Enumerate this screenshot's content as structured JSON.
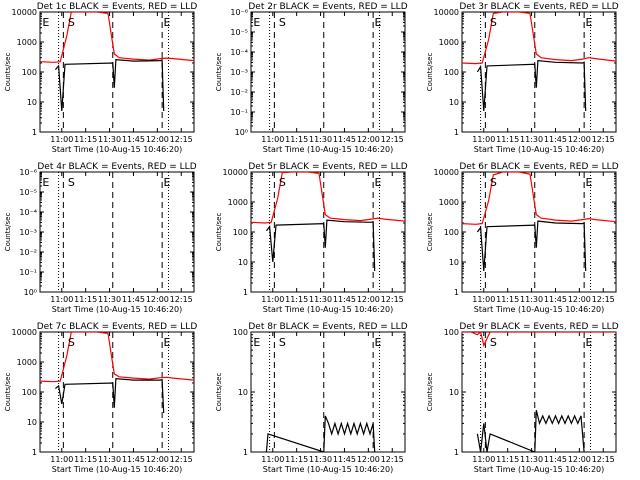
{
  "window": {
    "background": "#ffffff",
    "axis_color": "#000000"
  },
  "colors": {
    "events": "#000000",
    "lld": "#ff0000"
  },
  "start_time_label": "Start Time (10-Aug-15 10:46:20)",
  "ylabel": "Counts/sec",
  "time_ticks": [
    "11:00",
    "11:15",
    "11:30",
    "11:45",
    "12:00",
    "12:15"
  ],
  "markers": {
    "dotted": [
      "10:58",
      "12:07"
    ],
    "dashed": [
      "11:01",
      "11:32",
      "12:03"
    ]
  },
  "chart_data": [
    {
      "type": "line",
      "title": "Det 1c BLACK = Events, RED = LLD",
      "x_range": [
        "10:46:20",
        "12:23"
      ],
      "y_scale": "log",
      "ylim": [
        1,
        10000
      ],
      "yticks": [
        "1",
        "10",
        "100",
        "1000",
        "10000"
      ],
      "annotations": [
        {
          "text": "E",
          "time": "10:50"
        },
        {
          "text": "S",
          "time": "11:06"
        },
        {
          "text": "E",
          "time": "12:06"
        }
      ],
      "series": [
        {
          "name": "LLD",
          "color": "red",
          "x": [
            "10:46:20",
            "10:55",
            "10:59",
            "11:03",
            "11:06",
            "11:12",
            "11:22",
            "11:29",
            "11:33",
            "11:36",
            "11:45",
            "11:55",
            "12:02",
            "12:06",
            "12:10",
            "12:23"
          ],
          "y": [
            220,
            210,
            220,
            1500,
            10000,
            14000,
            14000,
            9000,
            400,
            300,
            270,
            250,
            280,
            290,
            280,
            240
          ]
        },
        {
          "name": "Events",
          "color": "black",
          "x": [
            "10:56",
            "10:58",
            "11:00",
            "11:02",
            "11:32",
            "11:33",
            "11:34",
            "11:45",
            "12:02",
            "12:03",
            "12:04"
          ],
          "y": [
            120,
            160,
            5,
            180,
            200,
            30,
            260,
            230,
            240,
            250,
            5
          ]
        }
      ]
    },
    {
      "type": "line",
      "title": "Det 2r BLACK = Events, RED = LLD",
      "x_range": [
        "10:46:20",
        "12:23"
      ],
      "y_scale": "log",
      "ylim": [
        1,
        1e-06
      ],
      "yticks": [
        "10⁰",
        "10⁻¹",
        "10⁻²",
        "10⁻³",
        "10⁻⁴",
        "10⁻⁵",
        "10⁻⁶"
      ],
      "annotations": [
        {
          "text": "E",
          "time": "10:50"
        },
        {
          "text": "S",
          "time": "11:06"
        },
        {
          "text": "E",
          "time": "12:06"
        }
      ],
      "series": []
    },
    {
      "type": "line",
      "title": "Det 3r BLACK = Events, RED = LLD",
      "x_range": [
        "10:46:20",
        "12:23"
      ],
      "y_scale": "log",
      "ylim": [
        1,
        10000
      ],
      "yticks": [
        "1",
        "10",
        "100",
        "1000",
        "10000"
      ],
      "annotations": [
        {
          "text": "S",
          "time": "11:06"
        },
        {
          "text": "E",
          "time": "12:06"
        }
      ],
      "series": [
        {
          "name": "LLD",
          "color": "red",
          "x": [
            "10:46:20",
            "10:55",
            "10:59",
            "11:03",
            "11:06",
            "11:12",
            "11:22",
            "11:29",
            "11:33",
            "11:36",
            "11:45",
            "11:55",
            "12:02",
            "12:06",
            "12:10",
            "12:23"
          ],
          "y": [
            200,
            190,
            200,
            1200,
            9000,
            14000,
            14000,
            9000,
            400,
            300,
            260,
            240,
            270,
            300,
            280,
            230
          ]
        },
        {
          "name": "Events",
          "color": "black",
          "x": [
            "10:56",
            "10:58",
            "11:00",
            "11:02",
            "11:32",
            "11:33",
            "11:34",
            "11:45",
            "12:02",
            "12:03",
            "12:04"
          ],
          "y": [
            100,
            150,
            5,
            160,
            180,
            30,
            240,
            210,
            200,
            210,
            5
          ]
        }
      ]
    },
    {
      "type": "line",
      "title": "Det 4r BLACK = Events, RED = LLD",
      "x_range": [
        "10:46:20",
        "12:23"
      ],
      "y_scale": "log",
      "ylim": [
        1,
        1e-06
      ],
      "yticks": [
        "10⁰",
        "10⁻¹",
        "10⁻²",
        "10⁻³",
        "10⁻⁴",
        "10⁻⁵",
        "10⁻⁶"
      ],
      "annotations": [
        {
          "text": "E",
          "time": "10:50"
        },
        {
          "text": "S",
          "time": "11:06"
        },
        {
          "text": "E",
          "time": "12:06"
        }
      ],
      "series": []
    },
    {
      "type": "line",
      "title": "Det 5r BLACK = Events, RED = LLD",
      "x_range": [
        "10:46:20",
        "12:23"
      ],
      "y_scale": "log",
      "ylim": [
        1,
        10000
      ],
      "yticks": [
        "1",
        "10",
        "100",
        "1000",
        "10000"
      ],
      "annotations": [
        {
          "text": "S",
          "time": "11:06"
        },
        {
          "text": "E",
          "time": "12:06"
        }
      ],
      "series": [
        {
          "name": "LLD",
          "color": "red",
          "x": [
            "10:46:20",
            "10:55",
            "10:59",
            "11:03",
            "11:06",
            "11:12",
            "11:22",
            "11:29",
            "11:33",
            "11:36",
            "11:45",
            "11:55",
            "12:02",
            "12:06",
            "12:10",
            "12:23"
          ],
          "y": [
            210,
            200,
            210,
            1300,
            9500,
            14000,
            14000,
            9000,
            380,
            290,
            260,
            240,
            270,
            290,
            270,
            230
          ]
        },
        {
          "name": "Events",
          "color": "black",
          "x": [
            "10:56",
            "10:58",
            "11:00",
            "11:02",
            "11:32",
            "11:33",
            "11:34",
            "11:45",
            "12:02",
            "12:03",
            "12:04"
          ],
          "y": [
            110,
            150,
            10,
            170,
            190,
            30,
            250,
            220,
            210,
            220,
            5
          ]
        }
      ]
    },
    {
      "type": "line",
      "title": "Det 6r BLACK = Events, RED = LLD",
      "x_range": [
        "10:46:20",
        "12:23"
      ],
      "y_scale": "log",
      "ylim": [
        1,
        10000
      ],
      "yticks": [
        "1",
        "10",
        "100",
        "1000",
        "10000"
      ],
      "annotations": [
        {
          "text": "S",
          "time": "11:06"
        },
        {
          "text": "E",
          "time": "12:06"
        }
      ],
      "series": [
        {
          "name": "LLD",
          "color": "red",
          "x": [
            "10:46:20",
            "10:55",
            "10:59",
            "11:03",
            "11:06",
            "11:12",
            "11:22",
            "11:29",
            "11:33",
            "11:36",
            "11:45",
            "11:55",
            "12:02",
            "12:06",
            "12:10",
            "12:23"
          ],
          "y": [
            190,
            180,
            190,
            1100,
            8000,
            13000,
            13000,
            8500,
            380,
            290,
            250,
            230,
            260,
            280,
            260,
            220
          ]
        },
        {
          "name": "Events",
          "color": "black",
          "x": [
            "10:56",
            "10:58",
            "11:00",
            "11:02",
            "11:32",
            "11:33",
            "11:34",
            "11:45",
            "12:02",
            "12:03",
            "12:04"
          ],
          "y": [
            100,
            140,
            5,
            150,
            170,
            30,
            230,
            200,
            190,
            200,
            5
          ]
        }
      ]
    },
    {
      "type": "line",
      "title": "Det 7c BLACK = Events, RED = LLD",
      "x_range": [
        "10:46:20",
        "12:23"
      ],
      "y_scale": "log",
      "ylim": [
        1,
        10000
      ],
      "yticks": [
        "1",
        "10",
        "100",
        "1000",
        "10000"
      ],
      "annotations": [
        {
          "text": "S",
          "time": "11:06"
        },
        {
          "text": "E",
          "time": "12:06"
        }
      ],
      "series": [
        {
          "name": "LLD",
          "color": "red",
          "x": [
            "10:46:20",
            "10:55",
            "10:59",
            "11:03",
            "11:06",
            "11:12",
            "11:22",
            "11:29",
            "11:33",
            "11:36",
            "11:45",
            "11:55",
            "12:02",
            "12:06",
            "12:10",
            "12:23"
          ],
          "y": [
            230,
            220,
            230,
            1500,
            10000,
            14000,
            14000,
            9000,
            400,
            320,
            290,
            270,
            300,
            310,
            290,
            250
          ]
        },
        {
          "name": "Events",
          "color": "black",
          "x": [
            "10:56",
            "10:58",
            "11:00",
            "11:02",
            "11:32",
            "11:33",
            "11:34",
            "11:45",
            "12:02",
            "12:03",
            "12:04"
          ],
          "y": [
            130,
            160,
            40,
            180,
            200,
            30,
            280,
            250,
            250,
            260,
            20
          ]
        }
      ]
    },
    {
      "type": "line",
      "title": "Det 8r BLACK = Events, RED = LLD",
      "x_range": [
        "10:46:20",
        "12:23"
      ],
      "y_scale": "log",
      "ylim": [
        1,
        100
      ],
      "yticks": [
        "1",
        "10",
        "100"
      ],
      "annotations": [
        {
          "text": "E",
          "time": "10:50"
        },
        {
          "text": "S",
          "time": "11:06"
        },
        {
          "text": "E",
          "time": "12:06"
        }
      ],
      "series": [
        {
          "name": "Events",
          "color": "black",
          "x": [
            "10:56",
            "10:57",
            "11:32",
            "11:33",
            "11:35",
            "11:37",
            "11:39",
            "11:41",
            "11:43",
            "11:45",
            "11:47",
            "11:49",
            "11:51",
            "11:53",
            "11:55",
            "11:57",
            "11:59",
            "12:01",
            "12:03",
            "12:04"
          ],
          "y": [
            1,
            2,
            1,
            4,
            3,
            2,
            3,
            2,
            3,
            2,
            3,
            2,
            3,
            2,
            3,
            2,
            3,
            2,
            3,
            1
          ]
        }
      ]
    },
    {
      "type": "line",
      "title": "Det 9r BLACK = Events, RED = LLD",
      "x_range": [
        "10:46:20",
        "12:23"
      ],
      "y_scale": "log",
      "ylim": [
        1,
        100
      ],
      "yticks": [
        "1",
        "10",
        "100"
      ],
      "annotations": [
        {
          "text": "S",
          "time": "11:06"
        },
        {
          "text": "E",
          "time": "12:06"
        }
      ],
      "series": [
        {
          "name": "LLD",
          "color": "red",
          "x": [
            "10:46:20",
            "10:52",
            "10:56",
            "10:58",
            "11:00",
            "11:04",
            "11:10",
            "11:20",
            "11:30",
            "11:40",
            "11:50",
            "12:00",
            "12:10",
            "12:23"
          ],
          "y": [
            100,
            100,
            90,
            100,
            60,
            100,
            100,
            100,
            100,
            100,
            100,
            100,
            100,
            100
          ]
        },
        {
          "name": "Events",
          "color": "black",
          "x": [
            "10:56",
            "10:58",
            "11:00",
            "11:02",
            "11:04",
            "11:32",
            "11:33",
            "11:35",
            "11:37",
            "11:39",
            "11:41",
            "11:43",
            "11:45",
            "11:47",
            "11:49",
            "11:51",
            "11:53",
            "11:55",
            "11:57",
            "11:59",
            "12:01",
            "12:03"
          ],
          "y": [
            2,
            1,
            3,
            1,
            2,
            1,
            5,
            3,
            4,
            3,
            4,
            3,
            4,
            3,
            4,
            3,
            4,
            3,
            4,
            3,
            4,
            1
          ]
        }
      ]
    }
  ]
}
